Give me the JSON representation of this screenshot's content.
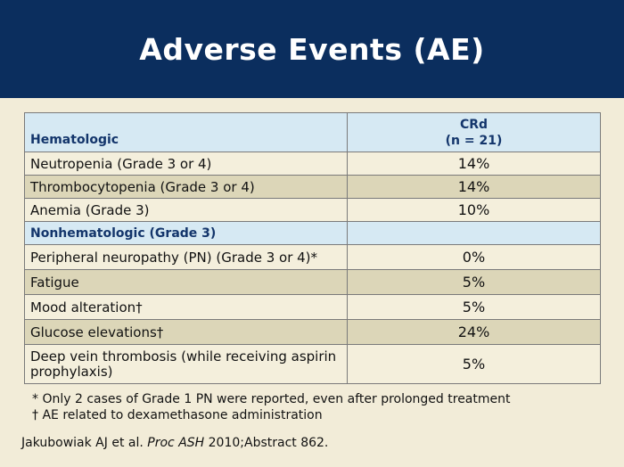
{
  "title": "Adverse Events (AE)",
  "table": {
    "header": {
      "label": "Hematologic",
      "col_line1": "CRd",
      "col_line2": "(n = 21)"
    },
    "rows": [
      {
        "label": "Neutropenia (Grade 3 or 4)",
        "value": "14%"
      },
      {
        "label": "Thrombocytopenia (Grade 3 or 4)",
        "value": "14%"
      },
      {
        "label": "Anemia (Grade 3)",
        "value": "10%"
      },
      {
        "label": "Nonhematologic (Grade 3)",
        "value": ""
      },
      {
        "label": "Peripheral neuropathy (PN) (Grade 3 or 4)*",
        "value": "0%"
      },
      {
        "label": "Fatigue",
        "value": "5%"
      },
      {
        "label": "Mood alteration†",
        "value": "5%"
      },
      {
        "label": "Glucose elevations†",
        "value": "24%"
      },
      {
        "label": "Deep vein thrombosis (while receiving aspirin prophylaxis)",
        "value": "5%"
      }
    ]
  },
  "footnotes": [
    "* Only 2 cases of Grade 1 PN were reported, even after prolonged treatment",
    "† AE related to dexamethasone administration"
  ],
  "citation": {
    "authors": "Jakubowiak AJ et al.",
    "journal": "Proc ASH",
    "details": "2010;Abstract 862."
  }
}
